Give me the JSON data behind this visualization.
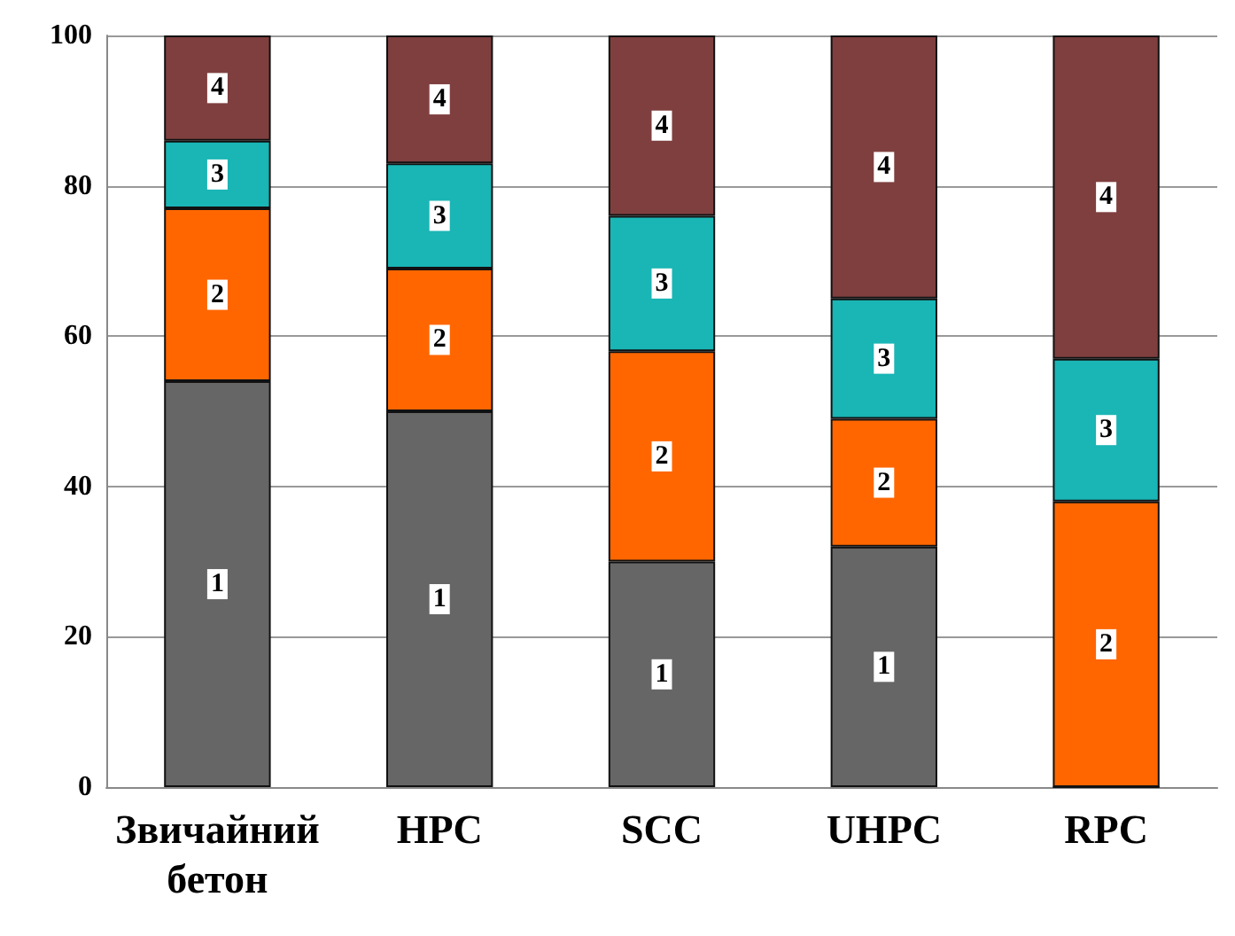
{
  "chart_data": {
    "type": "bar",
    "stacked": true,
    "categories": [
      "Звичайний бетон",
      "HPC",
      "SCC",
      "UHPC",
      "RPC"
    ],
    "series": [
      {
        "name": "1",
        "color": "#666666",
        "values": [
          54,
          50,
          30,
          32,
          0
        ]
      },
      {
        "name": "2",
        "color": "#ff6600",
        "values": [
          23,
          19,
          28,
          17,
          38
        ]
      },
      {
        "name": "3",
        "color": "#1ab5b5",
        "values": [
          9,
          14,
          18,
          16,
          19
        ]
      },
      {
        "name": "4",
        "color": "#7f3f3f",
        "values": [
          14,
          17,
          24,
          35,
          43
        ]
      }
    ],
    "ylim": [
      0,
      100
    ],
    "yticks": [
      0,
      20,
      40,
      60,
      80,
      100
    ],
    "grid": "y",
    "legend": false
  }
}
